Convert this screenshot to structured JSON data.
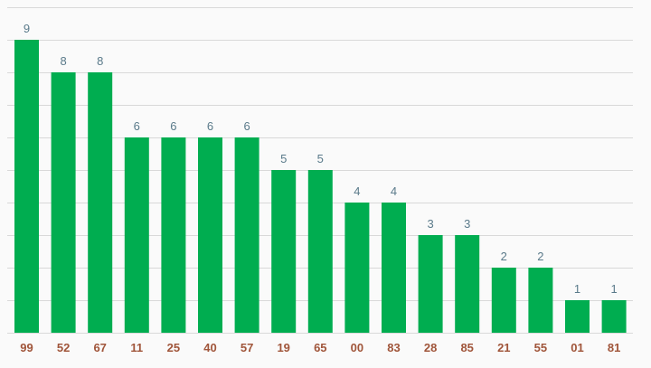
{
  "chart_data": {
    "type": "bar",
    "categories": [
      "99",
      "52",
      "67",
      "11",
      "25",
      "40",
      "57",
      "19",
      "65",
      "00",
      "83",
      "28",
      "85",
      "21",
      "55",
      "01",
      "81"
    ],
    "values": [
      9,
      8,
      8,
      6,
      6,
      6,
      6,
      5,
      5,
      4,
      4,
      3,
      3,
      2,
      2,
      1,
      1
    ],
    "title": "",
    "xlabel": "",
    "ylabel": "",
    "ylim": [
      0,
      10
    ],
    "grid": true,
    "data_labels": true
  },
  "colors": {
    "bar": "#00ad50",
    "grid": "#d9d9d9",
    "value_label": "#5a7a8a",
    "category_label": "#a0553a",
    "background": "#fafafa"
  }
}
